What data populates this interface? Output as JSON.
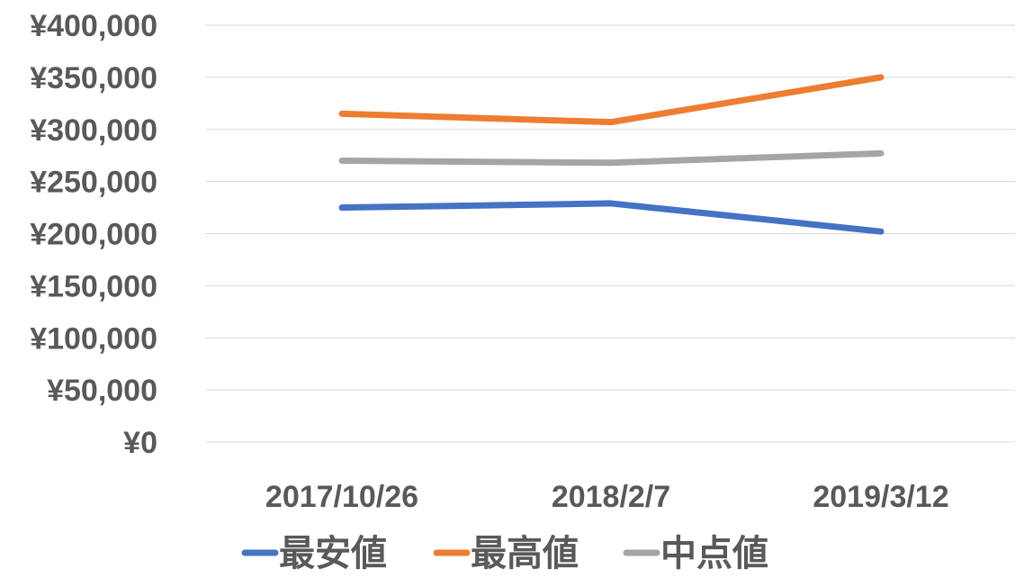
{
  "chart_data": {
    "type": "line",
    "categories": [
      "2017/10/26",
      "2018/2/7",
      "2019/3/12"
    ],
    "series": [
      {
        "name": "最安値",
        "color": "#4472C4",
        "values": [
          225000,
          229000,
          202000
        ]
      },
      {
        "name": "最高値",
        "color": "#ED7D31",
        "values": [
          315000,
          307000,
          350000
        ]
      },
      {
        "name": "中点値",
        "color": "#A5A5A5",
        "values": [
          270000,
          268000,
          277000
        ]
      }
    ],
    "y_ticks": [
      "¥0",
      "¥50,000",
      "¥100,000",
      "¥150,000",
      "¥200,000",
      "¥250,000",
      "¥300,000",
      "¥350,000",
      "¥400,000"
    ],
    "ylim": [
      0,
      400000
    ],
    "y_step": 50000,
    "grid": true,
    "legend": "bottom",
    "title": "",
    "xlabel": "",
    "ylabel": ""
  }
}
